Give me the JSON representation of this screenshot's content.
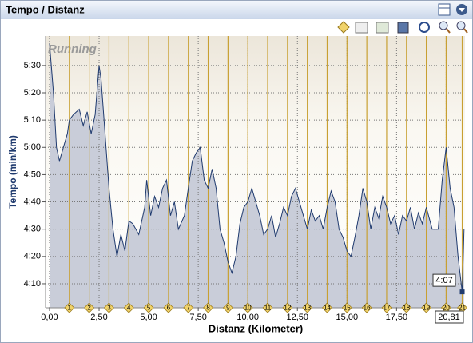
{
  "chart_data": {
    "type": "area",
    "title": "Tempo / Distanz",
    "subtitle": "Running",
    "x_label": "Distanz (Kilometer)",
    "y_label": "Tempo (min/km)",
    "x": [
      0,
      0.2,
      0.35,
      0.5,
      0.7,
      0.9,
      1.0,
      1.2,
      1.5,
      1.7,
      1.9,
      2.1,
      2.3,
      2.5,
      2.6,
      2.8,
      3.0,
      3.2,
      3.4,
      3.6,
      3.8,
      4.0,
      4.2,
      4.5,
      4.8,
      4.9,
      5.1,
      5.3,
      5.5,
      5.7,
      5.9,
      6.1,
      6.3,
      6.5,
      6.8,
      7.0,
      7.2,
      7.4,
      7.6,
      7.8,
      8.0,
      8.2,
      8.4,
      8.6,
      8.8,
      9.0,
      9.2,
      9.4,
      9.6,
      9.8,
      10.0,
      10.2,
      10.4,
      10.6,
      10.8,
      11.0,
      11.2,
      11.4,
      11.6,
      11.8,
      12.0,
      12.2,
      12.4,
      12.6,
      12.8,
      13.0,
      13.2,
      13.4,
      13.6,
      13.8,
      14.0,
      14.2,
      14.4,
      14.6,
      14.8,
      15.0,
      15.2,
      15.4,
      15.6,
      15.8,
      16.0,
      16.2,
      16.4,
      16.6,
      16.8,
      17.0,
      17.2,
      17.4,
      17.6,
      17.8,
      18.0,
      18.2,
      18.4,
      18.6,
      18.8,
      19.0,
      19.3,
      19.6,
      19.8,
      20.0,
      20.2,
      20.4,
      20.6,
      20.81,
      20.9
    ],
    "values": [
      5.633,
      5.333,
      5.0,
      4.917,
      5.0,
      5.083,
      5.167,
      5.2,
      5.233,
      5.133,
      5.217,
      5.083,
      5.2,
      5.5,
      5.417,
      5.083,
      4.75,
      4.5,
      4.333,
      4.467,
      4.367,
      4.55,
      4.533,
      4.467,
      4.633,
      4.8,
      4.583,
      4.7,
      4.633,
      4.75,
      4.8,
      4.583,
      4.667,
      4.5,
      4.583,
      4.75,
      4.917,
      4.967,
      5.0,
      4.8,
      4.75,
      4.867,
      4.75,
      4.5,
      4.417,
      4.3,
      4.233,
      4.333,
      4.533,
      4.633,
      4.667,
      4.75,
      4.667,
      4.583,
      4.467,
      4.5,
      4.583,
      4.45,
      4.533,
      4.633,
      4.583,
      4.7,
      4.75,
      4.667,
      4.583,
      4.5,
      4.617,
      4.55,
      4.583,
      4.5,
      4.633,
      4.733,
      4.667,
      4.5,
      4.45,
      4.367,
      4.333,
      4.45,
      4.583,
      4.75,
      4.667,
      4.5,
      4.633,
      4.567,
      4.7,
      4.633,
      4.533,
      4.583,
      4.467,
      4.583,
      4.55,
      4.633,
      4.5,
      4.6,
      4.533,
      4.633,
      4.5,
      4.5,
      4.8,
      5.0,
      4.75,
      4.633,
      4.333,
      4.117,
      4.5
    ],
    "color": "#1f3a6e",
    "fill": "#c9cdd9",
    "marker_color": "#c8a032",
    "xlim": [
      -0.2,
      20.95
    ],
    "ylim": [
      4.02,
      5.68
    ],
    "xticks": [
      {
        "value": 0,
        "label": "0,00"
      },
      {
        "value": 2.5,
        "label": "2,50"
      },
      {
        "value": 5,
        "label": "5,00"
      },
      {
        "value": 7.5,
        "label": "7,50"
      },
      {
        "value": 10,
        "label": "10,00"
      },
      {
        "value": 12.5,
        "label": "12,50"
      },
      {
        "value": 15,
        "label": "15,00"
      },
      {
        "value": 17.5,
        "label": "17,50"
      },
      {
        "value": 20,
        "label": "20,00"
      }
    ],
    "yticks": [
      {
        "value": 4.1667,
        "label": "4:10"
      },
      {
        "value": 4.3333,
        "label": "4:20"
      },
      {
        "value": 4.5,
        "label": "4:30"
      },
      {
        "value": 4.6667,
        "label": "4:40"
      },
      {
        "value": 4.8333,
        "label": "4:50"
      },
      {
        "value": 5,
        "label": "5:00"
      },
      {
        "value": 5.1667,
        "label": "5:10"
      },
      {
        "value": 5.3333,
        "label": "5:20"
      },
      {
        "value": 5.5,
        "label": "5:30"
      }
    ],
    "grid": true,
    "markers": [
      {
        "x": 1,
        "label": "1"
      },
      {
        "x": 2,
        "label": "2"
      },
      {
        "x": 3,
        "label": "3"
      },
      {
        "x": 4,
        "label": "4"
      },
      {
        "x": 5,
        "label": "5"
      },
      {
        "x": 6,
        "label": "6"
      },
      {
        "x": 7,
        "label": "7"
      },
      {
        "x": 8,
        "label": "8"
      },
      {
        "x": 9,
        "label": "9"
      },
      {
        "x": 10,
        "label": "10"
      },
      {
        "x": 11,
        "label": "11"
      },
      {
        "x": 12,
        "label": "12"
      },
      {
        "x": 13,
        "label": "13"
      },
      {
        "x": 14,
        "label": "14"
      },
      {
        "x": 15,
        "label": "15"
      },
      {
        "x": 16,
        "label": "16"
      },
      {
        "x": 17,
        "label": "17"
      },
      {
        "x": 18,
        "label": "18"
      },
      {
        "x": 19,
        "label": "19"
      },
      {
        "x": 20,
        "label": "20"
      },
      {
        "x": 20.81,
        "label": "21"
      }
    ],
    "cursor": {
      "x": {
        "value": 20.81,
        "label": "20,81"
      },
      "y": {
        "value": 4.117,
        "label": "4:07"
      }
    }
  }
}
